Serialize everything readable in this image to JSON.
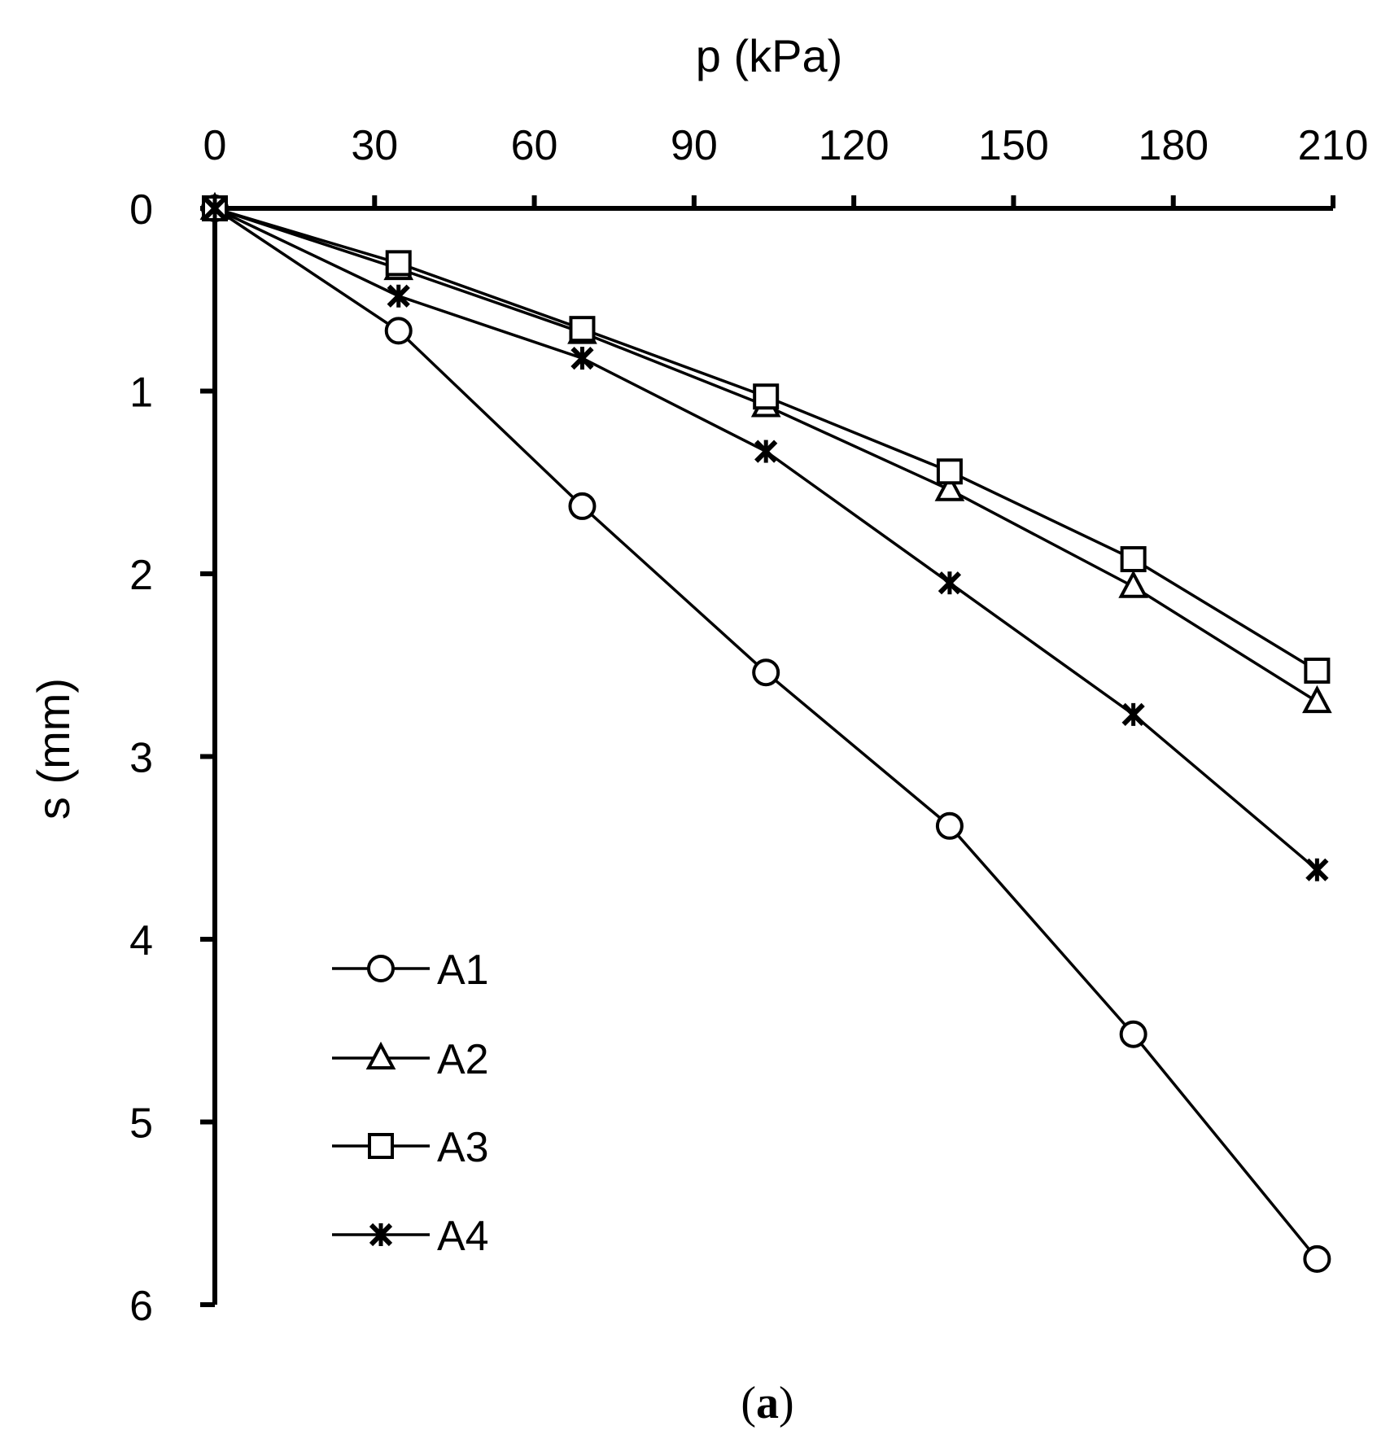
{
  "chart_data": {
    "type": "line",
    "title": "",
    "xlabel": "p (kPa)",
    "ylabel": "s (mm)",
    "x_axis_position": "top",
    "y_axis_inverted": true,
    "xlim": [
      0,
      210
    ],
    "ylim": [
      0,
      6
    ],
    "xticks": [
      0,
      30,
      60,
      90,
      120,
      150,
      180,
      210
    ],
    "yticks": [
      0,
      1,
      2,
      3,
      4,
      5,
      6
    ],
    "grid": false,
    "legend_position": "bottom-left",
    "x": [
      0,
      34.5,
      69,
      103.5,
      138,
      172.5,
      207
    ],
    "series": [
      {
        "name": "A1",
        "marker": "circle",
        "values": [
          0,
          0.67,
          1.63,
          2.54,
          3.38,
          4.52,
          5.75
        ]
      },
      {
        "name": "A2",
        "marker": "triangle",
        "values": [
          0,
          0.33,
          0.68,
          1.08,
          1.54,
          2.07,
          2.7
        ]
      },
      {
        "name": "A3",
        "marker": "square",
        "values": [
          0,
          0.3,
          0.66,
          1.03,
          1.44,
          1.92,
          2.53
        ]
      },
      {
        "name": "A4",
        "marker": "asterisk",
        "values": [
          0,
          0.48,
          0.82,
          1.33,
          2.05,
          2.77,
          3.62
        ]
      }
    ],
    "panel_label": {
      "open": "(",
      "letter": "a",
      "close": ")"
    }
  }
}
